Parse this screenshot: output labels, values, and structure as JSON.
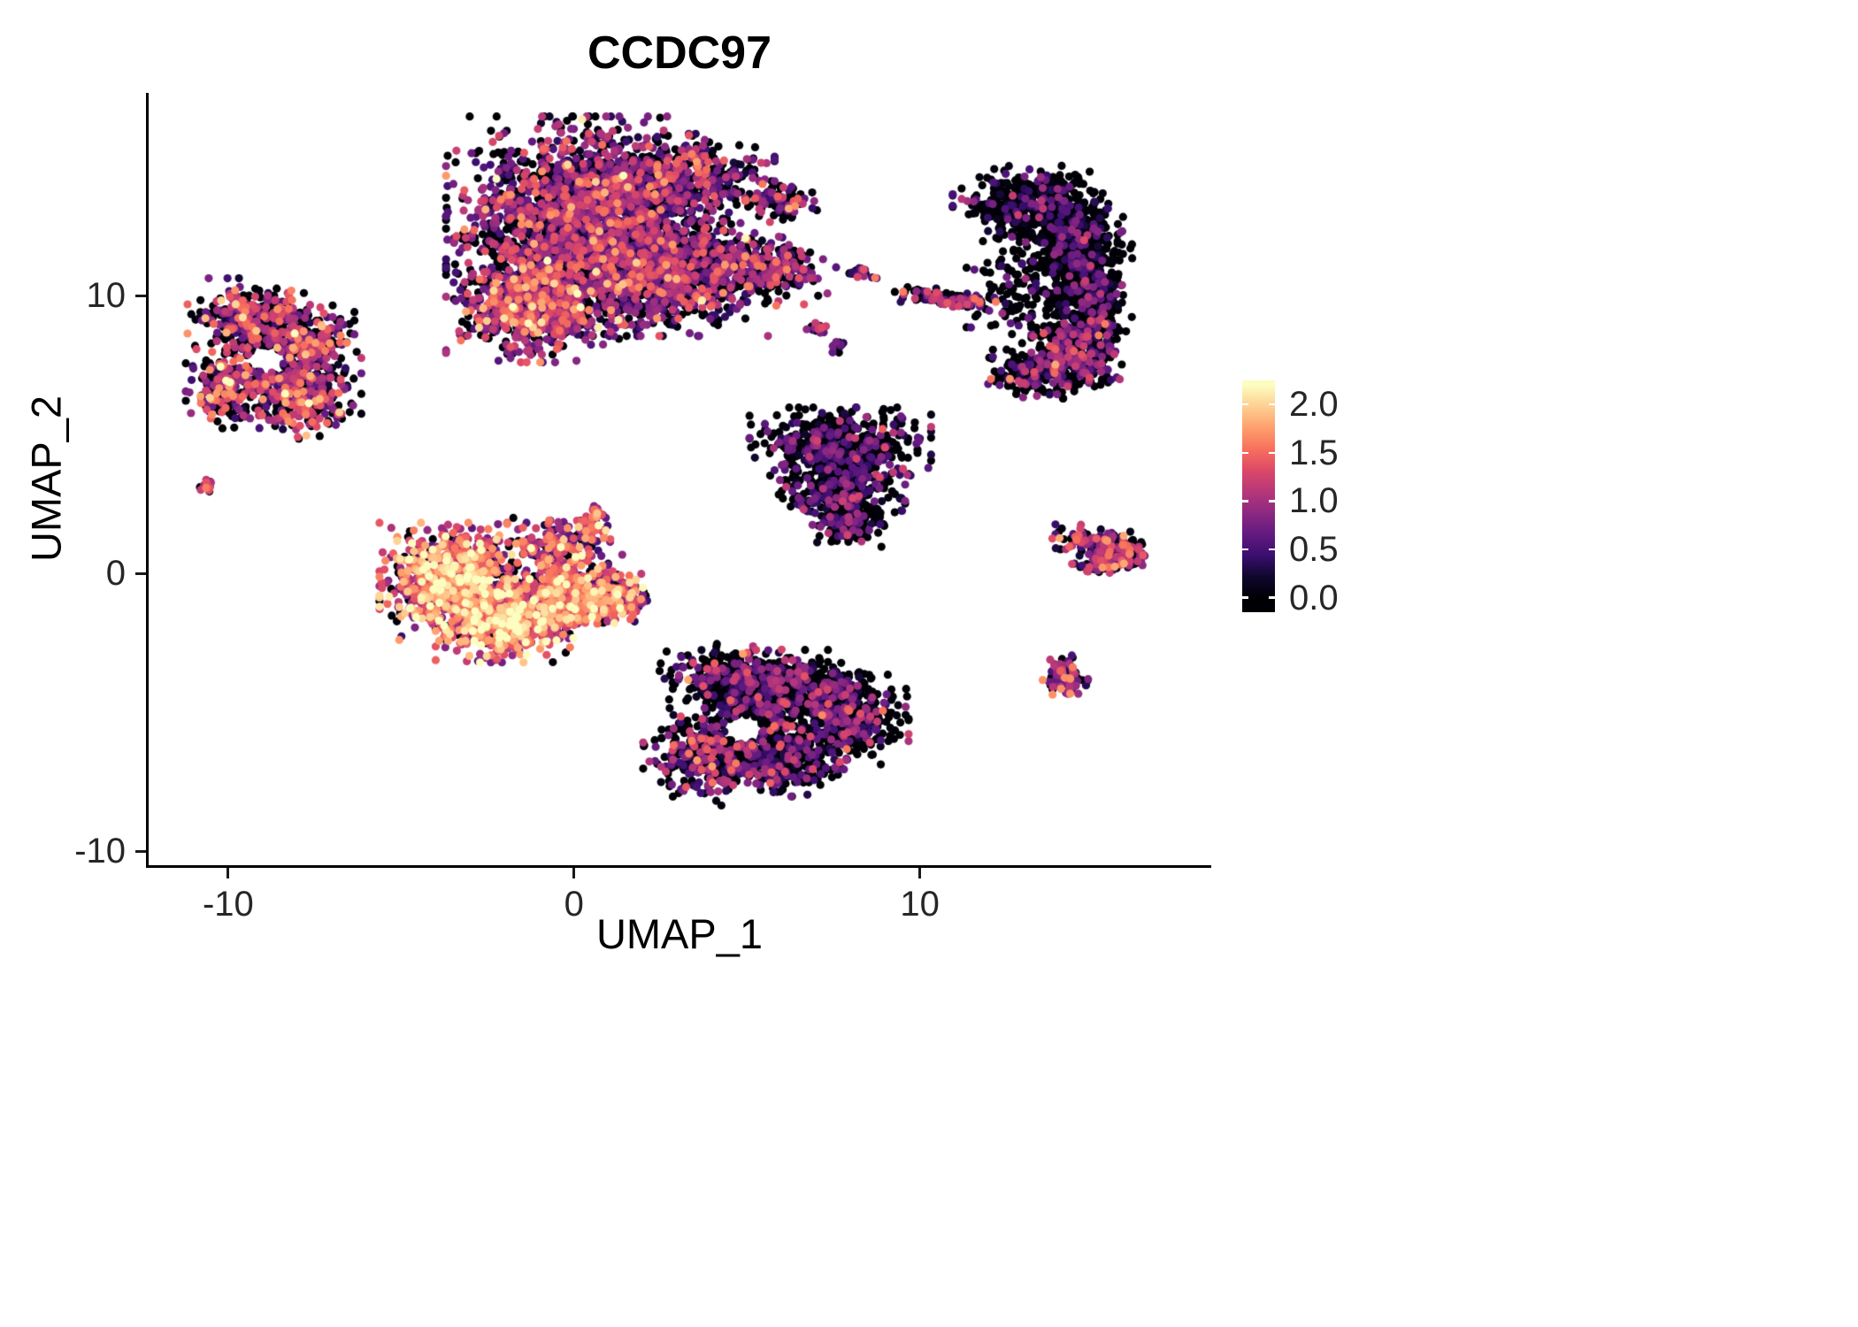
{
  "chart_data": {
    "type": "scatter",
    "title": "CCDC97",
    "xlabel": "UMAP_1",
    "ylabel": "UMAP_2",
    "xlim": [
      -12.3,
      18.4
    ],
    "ylim": [
      -10.5,
      17.3
    ],
    "grid": false,
    "x_ticks": [
      {
        "v": -10,
        "label": "-10"
      },
      {
        "v": 0,
        "label": "0"
      },
      {
        "v": 10,
        "label": "10"
      }
    ],
    "y_ticks": [
      {
        "v": 10,
        "label": "10"
      },
      {
        "v": 0,
        "label": "0"
      },
      {
        "v": -10,
        "label": "-10"
      }
    ],
    "legend": {
      "position": "right",
      "vmin": 0.0,
      "vmax": 2.2,
      "ticks": [
        {
          "v": 2.0,
          "label": "2.0"
        },
        {
          "v": 1.5,
          "label": "1.5"
        },
        {
          "v": 1.0,
          "label": "1.0"
        },
        {
          "v": 0.5,
          "label": "0.5"
        },
        {
          "v": 0.0,
          "label": "0.0"
        }
      ]
    },
    "colormap": {
      "name": "magma",
      "stops": [
        [
          0.0,
          "#000004"
        ],
        [
          0.1,
          "#10072E"
        ],
        [
          0.2,
          "#3B0F70"
        ],
        [
          0.3,
          "#641A80"
        ],
        [
          0.4,
          "#8C2981"
        ],
        [
          0.5,
          "#B73779"
        ],
        [
          0.6,
          "#DD4968"
        ],
        [
          0.7,
          "#F7705C"
        ],
        [
          0.8,
          "#FE9F6D"
        ],
        [
          0.9,
          "#FECF92"
        ],
        [
          1.0,
          "#FCFDBF"
        ]
      ]
    },
    "point_radius_px": 4.6,
    "clusters": [
      {
        "name": "top-center-large",
        "blobs": [
          {
            "x": 0.3,
            "y": 12.7,
            "sx": 1.6,
            "sy": 1.5,
            "n": 2200
          },
          {
            "x": 2.6,
            "y": 10.8,
            "sx": 1.3,
            "sy": 0.9,
            "n": 1000
          },
          {
            "x": -1.2,
            "y": 9.6,
            "sx": 1.0,
            "sy": 0.8,
            "n": 700,
            "expr": {
              "zero": 0.25,
              "mean": 1.0,
              "sd": 0.45,
              "max": 2.2
            }
          },
          {
            "x": 2.8,
            "y": 14.2,
            "sx": 1.2,
            "sy": 0.65,
            "n": 500
          },
          {
            "x": 5.4,
            "y": 11.1,
            "sx": 0.85,
            "sy": 0.45,
            "n": 260,
            "rot": -15
          },
          {
            "x": 5.9,
            "y": 13.4,
            "sx": 0.45,
            "sy": 0.3,
            "n": 110
          }
        ],
        "expr": {
          "zero": 0.4,
          "mean": 0.75,
          "sd": 0.45,
          "max": 2.2
        }
      },
      {
        "name": "left-ring",
        "blobs": [
          {
            "x": -9.3,
            "y": 9.0,
            "sx": 0.75,
            "sy": 0.65,
            "n": 420
          },
          {
            "x": -7.9,
            "y": 6.6,
            "sx": 0.7,
            "sy": 0.7,
            "n": 420
          },
          {
            "x": -10.1,
            "y": 6.6,
            "sx": 0.45,
            "sy": 0.55,
            "n": 220
          },
          {
            "x": -7.6,
            "y": 8.4,
            "sx": 0.5,
            "sy": 0.5,
            "n": 200
          }
        ],
        "holes": [
          {
            "x": -8.9,
            "y": 7.7,
            "rx": 0.5,
            "ry": 0.45
          }
        ],
        "expr": {
          "zero": 0.42,
          "mean": 0.95,
          "sd": 0.5,
          "max": 2.2
        }
      },
      {
        "name": "tiny-far-left",
        "blobs": [
          {
            "x": -10.7,
            "y": 3.1,
            "sx": 0.13,
            "sy": 0.16,
            "n": 14
          }
        ],
        "expr": {
          "zero": 0.2,
          "mean": 1.1,
          "sd": 0.3,
          "max": 1.6
        }
      },
      {
        "name": "center-left-bright",
        "blobs": [
          {
            "x": -3.5,
            "y": -0.3,
            "sx": 0.85,
            "sy": 0.85,
            "n": 850,
            "expr": {
              "zero": 0.1,
              "mean": 1.35,
              "sd": 0.5,
              "max": 2.25
            }
          },
          {
            "x": -2.0,
            "y": -1.7,
            "sx": 0.8,
            "sy": 0.6,
            "n": 650,
            "expr": {
              "zero": 0.1,
              "mean": 1.4,
              "sd": 0.5,
              "max": 2.25
            }
          },
          {
            "x": -0.2,
            "y": -0.7,
            "sx": 0.75,
            "sy": 0.55,
            "n": 450
          },
          {
            "x": 1.1,
            "y": -0.9,
            "sx": 0.5,
            "sy": 0.4,
            "n": 220
          },
          {
            "x": -0.7,
            "y": 1.0,
            "sx": 0.7,
            "sy": 0.4,
            "n": 160
          },
          {
            "x": 0.5,
            "y": 1.8,
            "sx": 0.2,
            "sy": 0.25,
            "n": 60
          }
        ],
        "expr": {
          "zero": 0.15,
          "mean": 1.15,
          "sd": 0.5,
          "max": 2.25
        }
      },
      {
        "name": "mid-right-triangle",
        "blobs": [
          {
            "x": 7.7,
            "y": 4.6,
            "sx": 1.05,
            "sy": 0.55,
            "n": 550
          },
          {
            "x": 7.7,
            "y": 3.0,
            "sx": 0.75,
            "sy": 0.5,
            "n": 330
          },
          {
            "x": 8.0,
            "y": 1.8,
            "sx": 0.45,
            "sy": 0.35,
            "n": 140
          }
        ],
        "expr": {
          "zero": 0.66,
          "mean": 0.55,
          "sd": 0.35,
          "max": 1.8
        }
      },
      {
        "name": "top-right-crescent",
        "blobs": [
          {
            "x": 13.2,
            "y": 13.3,
            "sx": 0.9,
            "sy": 0.55,
            "n": 450
          },
          {
            "x": 14.5,
            "y": 12.0,
            "sx": 0.55,
            "sy": 0.6,
            "n": 380
          },
          {
            "x": 14.9,
            "y": 10.1,
            "sx": 0.5,
            "sy": 0.7,
            "n": 380
          },
          {
            "x": 14.6,
            "y": 8.2,
            "sx": 0.55,
            "sy": 0.6,
            "n": 330,
            "expr": {
              "zero": 0.6,
              "mean": 0.7,
              "sd": 0.4,
              "max": 1.8
            }
          },
          {
            "x": 13.6,
            "y": 7.3,
            "sx": 0.65,
            "sy": 0.4,
            "n": 240,
            "expr": {
              "zero": 0.6,
              "mean": 0.7,
              "sd": 0.4,
              "max": 1.8
            }
          },
          {
            "x": 13.1,
            "y": 10.3,
            "sx": 0.7,
            "sy": 1.0,
            "n": 160
          }
        ],
        "expr": {
          "zero": 0.76,
          "mean": 0.5,
          "sd": 0.35,
          "max": 1.6
        }
      },
      {
        "name": "small-top-mid-dots",
        "blobs": [
          {
            "x": 8.3,
            "y": 10.8,
            "sx": 0.18,
            "sy": 0.14,
            "n": 26
          },
          {
            "x": 10.7,
            "y": 9.9,
            "sx": 0.6,
            "sy": 0.13,
            "n": 130,
            "rot": -8
          },
          {
            "x": 7.0,
            "y": 8.8,
            "sx": 0.13,
            "sy": 0.1,
            "n": 16
          },
          {
            "x": 7.6,
            "y": 8.2,
            "sx": 0.1,
            "sy": 0.1,
            "n": 12
          }
        ],
        "expr": {
          "zero": 0.5,
          "mean": 0.7,
          "sd": 0.4,
          "max": 1.6
        }
      },
      {
        "name": "bottom-center",
        "blobs": [
          {
            "x": 4.6,
            "y": -3.7,
            "sx": 0.85,
            "sy": 0.5,
            "n": 320
          },
          {
            "x": 6.6,
            "y": -4.0,
            "sx": 0.8,
            "sy": 0.5,
            "n": 330
          },
          {
            "x": 7.8,
            "y": -5.3,
            "sx": 0.75,
            "sy": 0.7,
            "n": 420
          },
          {
            "x": 5.4,
            "y": -5.5,
            "sx": 0.7,
            "sy": 0.6,
            "n": 300
          },
          {
            "x": 4.0,
            "y": -6.6,
            "sx": 0.8,
            "sy": 0.7,
            "n": 420,
            "expr": {
              "zero": 0.5,
              "mean": 0.75,
              "sd": 0.45,
              "max": 1.8
            }
          },
          {
            "x": 6.2,
            "y": -6.9,
            "sx": 0.6,
            "sy": 0.45,
            "n": 220
          }
        ],
        "holes": [
          {
            "x": 4.9,
            "y": -5.6,
            "rx": 0.55,
            "ry": 0.5
          }
        ],
        "expr": {
          "zero": 0.6,
          "mean": 0.6,
          "sd": 0.4,
          "max": 1.8
        }
      },
      {
        "name": "right-wedge",
        "blobs": [
          {
            "x": 15.2,
            "y": 1.1,
            "sx": 0.55,
            "sy": 0.22,
            "n": 150,
            "rot": -10
          },
          {
            "x": 15.4,
            "y": 0.35,
            "sx": 0.45,
            "sy": 0.18,
            "n": 100,
            "rot": 10
          },
          {
            "x": 16.0,
            "y": 0.7,
            "sx": 0.2,
            "sy": 0.25,
            "n": 70
          }
        ],
        "expr": {
          "zero": 0.35,
          "mean": 0.9,
          "sd": 0.45,
          "max": 1.8
        }
      },
      {
        "name": "small-bottom-right",
        "blobs": [
          {
            "x": 14.2,
            "y": -3.7,
            "sx": 0.27,
            "sy": 0.3,
            "n": 95
          }
        ],
        "expr": {
          "zero": 0.3,
          "mean": 0.95,
          "sd": 0.45,
          "max": 1.7
        }
      }
    ]
  }
}
